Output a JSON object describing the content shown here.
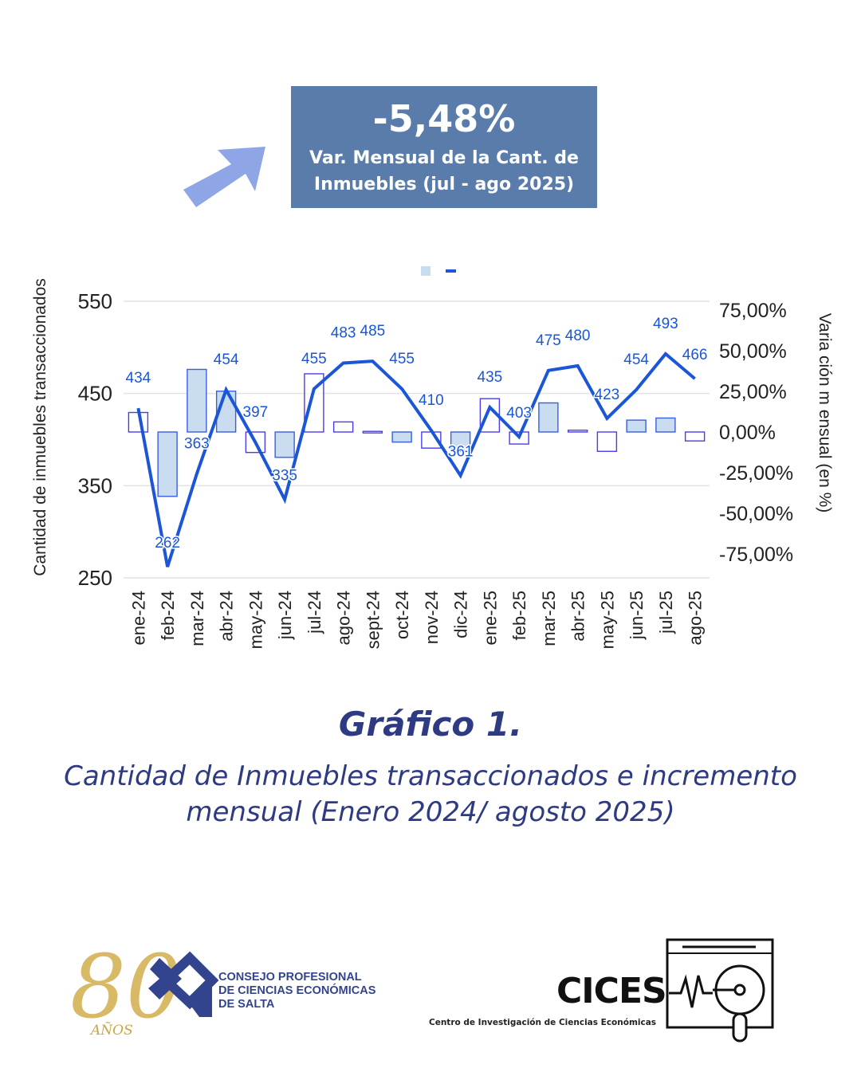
{
  "header": {
    "value": "-5,48%",
    "line1": "Var. Mensual de la Cant. de",
    "line2": "Inmuebles (jul - ago 2025)",
    "box_color": "#5a7cab",
    "arrow_color": "#8fa6e6",
    "arrow_icon": "arrow-up-right-icon"
  },
  "chart_data": {
    "type": "bar+line",
    "categories": [
      "ene-24",
      "feb-24",
      "mar-24",
      "abr-24",
      "may-24",
      "jun-24",
      "jul-24",
      "ago-24",
      "sept-24",
      "oct-24",
      "nov-24",
      "dic-24",
      "ene-25",
      "feb-25",
      "mar-25",
      "abr-25",
      "may-25",
      "jun-25",
      "jul-25",
      "ago-25"
    ],
    "series": [
      {
        "name": "Cantidad de inmuebles transaccionados",
        "type": "line",
        "axis": "left",
        "color": "#1a56d6",
        "values": [
          434,
          262,
          363,
          454,
          397,
          335,
          455,
          483,
          485,
          455,
          410,
          361,
          435,
          403,
          475,
          480,
          423,
          454,
          493,
          466
        ]
      },
      {
        "name": "Variación mensual (en %)",
        "type": "bar",
        "axis": "right",
        "color": "#c9dcf0",
        "values": [
          12.0,
          -39.6,
          38.5,
          25.1,
          -12.6,
          -15.6,
          35.8,
          6.2,
          0.4,
          -6.2,
          -9.9,
          -12.0,
          20.5,
          -7.4,
          17.9,
          1.1,
          -11.9,
          7.3,
          8.6,
          -5.5
        ],
        "filled": [
          false,
          true,
          true,
          true,
          false,
          true,
          false,
          false,
          false,
          true,
          false,
          true,
          false,
          false,
          true,
          false,
          false,
          true,
          true,
          false
        ]
      }
    ],
    "ylabel": "Cantidad de inmuebles transaccionados",
    "y2label": "Varia ción m ensual (en %)",
    "ylim": [
      250,
      550
    ],
    "yticks": [
      "550",
      "450",
      "350",
      "250"
    ],
    "y2lim": [
      -75,
      75
    ],
    "y2ticks": [
      "75,00%",
      "50,00%",
      "25,00%",
      "0,00%",
      "-25,00%",
      "-50,00%",
      "-75,00%"
    ],
    "grid": true,
    "legend": "top-center"
  },
  "caption": {
    "title": "Gráfico 1.",
    "subtitle_1": "Cantidad de Inmuebles transaccionados e incremento",
    "subtitle_2": "mensual (Enero 2024/ agosto 2025)"
  },
  "logos": {
    "cpce_years": "80",
    "cpce_anos": "AÑOS",
    "cpce_line1": "CONSEJO PROFESIONAL",
    "cpce_line2": "DE CIENCIAS ECONÓMICAS",
    "cpce_line3": "DE SALTA",
    "cices": "CICES",
    "cices_sub": "Centro de Investigación de Ciencias Económicas"
  }
}
